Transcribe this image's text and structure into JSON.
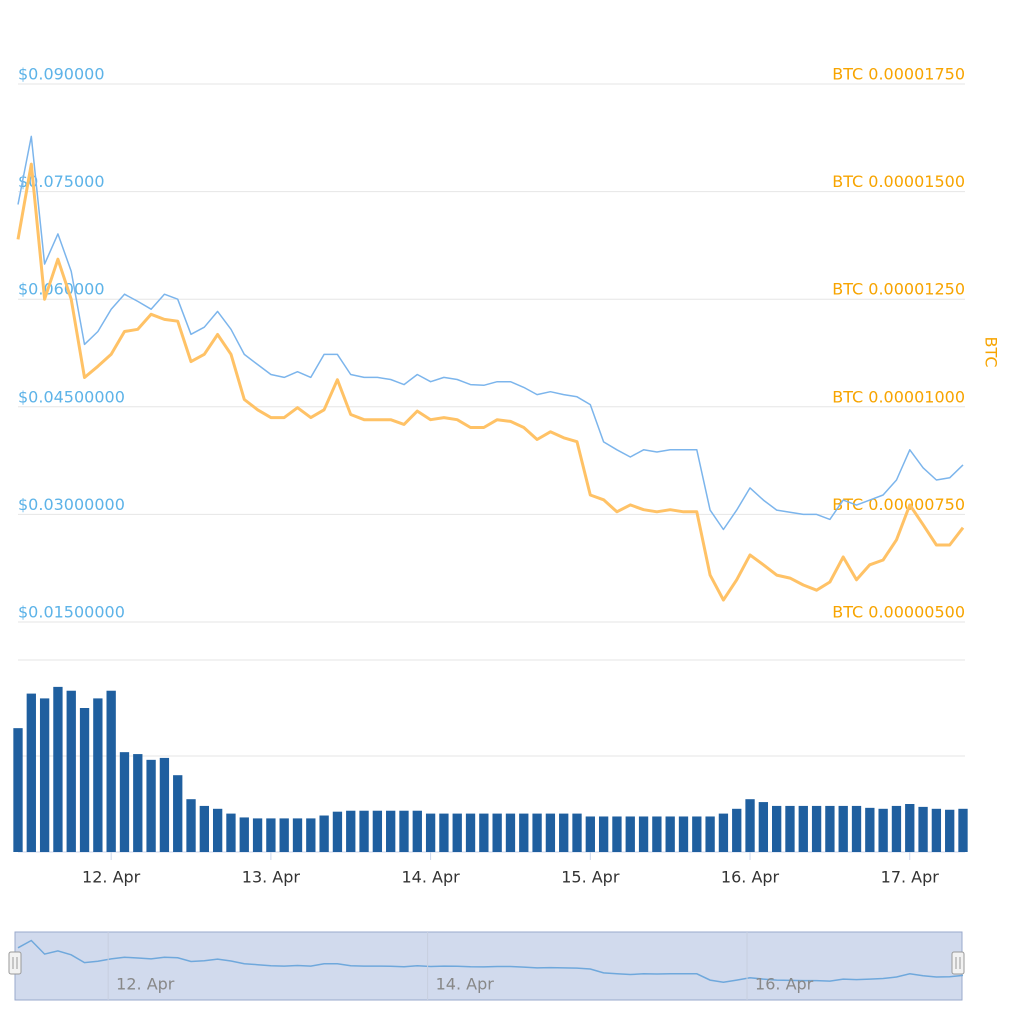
{
  "chart_data": [
    {
      "type": "line",
      "ylim": [
        0.015,
        0.09
      ],
      "yticks": [
        {
          "value": 0.09,
          "label": "$0.090000"
        },
        {
          "value": 0.075,
          "label": "$0.075000"
        },
        {
          "value": 0.06,
          "label": "$0.060000"
        },
        {
          "value": 0.045,
          "label": "$0.04500000"
        },
        {
          "value": 0.03,
          "label": "$0.03000000"
        },
        {
          "value": 0.015,
          "label": "$0.01500000"
        }
      ],
      "y2lim": [
        5e-06,
        1.75e-05
      ],
      "y2ticks": [
        {
          "value": 1.75e-05,
          "label": "BTC 0.00001750"
        },
        {
          "value": 1.5e-05,
          "label": "BTC 0.00001500"
        },
        {
          "value": 1.25e-05,
          "label": "BTC 0.00001250"
        },
        {
          "value": 1e-05,
          "label": "BTC 0.00001000"
        },
        {
          "value": 7.5e-06,
          "label": "BTC 0.00000750"
        },
        {
          "value": 5e-06,
          "label": "BTC 0.00000500"
        }
      ],
      "y2label": "BTC",
      "grid": true,
      "series": [
        {
          "color": "#7cb5ec",
          "axis": "y",
          "values": [
            0.0732,
            0.0827,
            0.0649,
            0.0691,
            0.0639,
            0.0537,
            0.0555,
            0.0586,
            0.0607,
            0.0597,
            0.0586,
            0.0607,
            0.06,
            0.0551,
            0.0561,
            0.0583,
            0.0558,
            0.0523,
            0.0509,
            0.0495,
            0.0491,
            0.0499,
            0.0491,
            0.0523,
            0.0523,
            0.0495,
            0.0491,
            0.0491,
            0.0488,
            0.0481,
            0.0495,
            0.0485,
            0.0491,
            0.0488,
            0.0481,
            0.048,
            0.0485,
            0.0485,
            0.0477,
            0.0467,
            0.0471,
            0.0467,
            0.0464,
            0.0453,
            0.0401,
            0.039,
            0.038,
            0.039,
            0.0387,
            0.039,
            0.039,
            0.039,
            0.0306,
            0.0279,
            0.0306,
            0.0337,
            0.032,
            0.0306,
            0.0303,
            0.03,
            0.03,
            0.0293,
            0.032,
            0.0313,
            0.032,
            0.0327,
            0.0348,
            0.039,
            0.0365,
            0.0348,
            0.0351,
            0.0369
          ]
        },
        {
          "color": "#ffc266",
          "axis": "y2",
          "values": [
            1.389e-05,
            1.564e-05,
            1.25e-05,
            1.343e-05,
            1.25e-05,
            1.068e-05,
            1.094e-05,
            1.122e-05,
            1.175e-05,
            1.18e-05,
            1.215e-05,
            1.203e-05,
            1.199e-05,
            1.105e-05,
            1.122e-05,
            1.168e-05,
            1.122e-05,
            1.017e-05,
            9.93e-06,
            9.75e-06,
            9.75e-06,
            9.98e-06,
            9.75e-06,
            9.93e-06,
            1.063e-05,
            9.82e-06,
            9.7e-06,
            9.7e-06,
            9.7e-06,
            9.59e-06,
            9.9e-06,
            9.7e-06,
            9.75e-06,
            9.7e-06,
            9.52e-06,
            9.52e-06,
            9.7e-06,
            9.66e-06,
            9.52e-06,
            9.24e-06,
            9.42e-06,
            9.28e-06,
            9.19e-06,
            7.95e-06,
            7.84e-06,
            7.56e-06,
            7.72e-06,
            7.61e-06,
            7.56e-06,
            7.61e-06,
            7.56e-06,
            7.56e-06,
            6.09e-06,
            5.51e-06,
            5.98e-06,
            6.56e-06,
            6.33e-06,
            6.09e-06,
            6.02e-06,
            5.86e-06,
            5.74e-06,
            5.93e-06,
            6.51e-06,
            5.98e-06,
            6.33e-06,
            6.44e-06,
            6.91e-06,
            7.72e-06,
            7.26e-06,
            6.79e-06,
            6.79e-06,
            7.19e-06
          ]
        }
      ]
    },
    {
      "type": "bar",
      "color": "#1f5f9f",
      "ylim": [
        0,
        200
      ],
      "yticks": [
        0,
        100,
        200
      ],
      "categories": [
        null,
        null,
        null,
        null,
        null,
        null,
        null,
        "12. Apr",
        null,
        null,
        null,
        null,
        null,
        null,
        null,
        null,
        null,
        null,
        null,
        "13. Apr",
        null,
        null,
        null,
        null,
        null,
        null,
        null,
        null,
        null,
        null,
        null,
        "14. Apr",
        null,
        null,
        null,
        null,
        null,
        null,
        null,
        null,
        null,
        null,
        null,
        "15. Apr",
        null,
        null,
        null,
        null,
        null,
        null,
        null,
        null,
        null,
        null,
        null,
        "16. Apr",
        null,
        null,
        null,
        null,
        null,
        null,
        null,
        null,
        null,
        null,
        null,
        "17. Apr",
        null,
        null,
        null,
        null
      ],
      "values": [
        129,
        165,
        160,
        172,
        168,
        150,
        160,
        168,
        104,
        102,
        96,
        98,
        80,
        55,
        48,
        45,
        40,
        36,
        35,
        35,
        35,
        35,
        35,
        38,
        42,
        43,
        43,
        43,
        43,
        43,
        43,
        40,
        40,
        40,
        40,
        40,
        40,
        40,
        40,
        40,
        40,
        40,
        40,
        37,
        37,
        37,
        37,
        37,
        37,
        37,
        37,
        37,
        37,
        40,
        45,
        55,
        52,
        48,
        48,
        48,
        48,
        48,
        48,
        48,
        46,
        45,
        48,
        50,
        47,
        45,
        44,
        45
      ]
    }
  ],
  "navigator": {
    "labels": [
      "12. Apr",
      "14. Apr",
      "16. Apr"
    ]
  }
}
